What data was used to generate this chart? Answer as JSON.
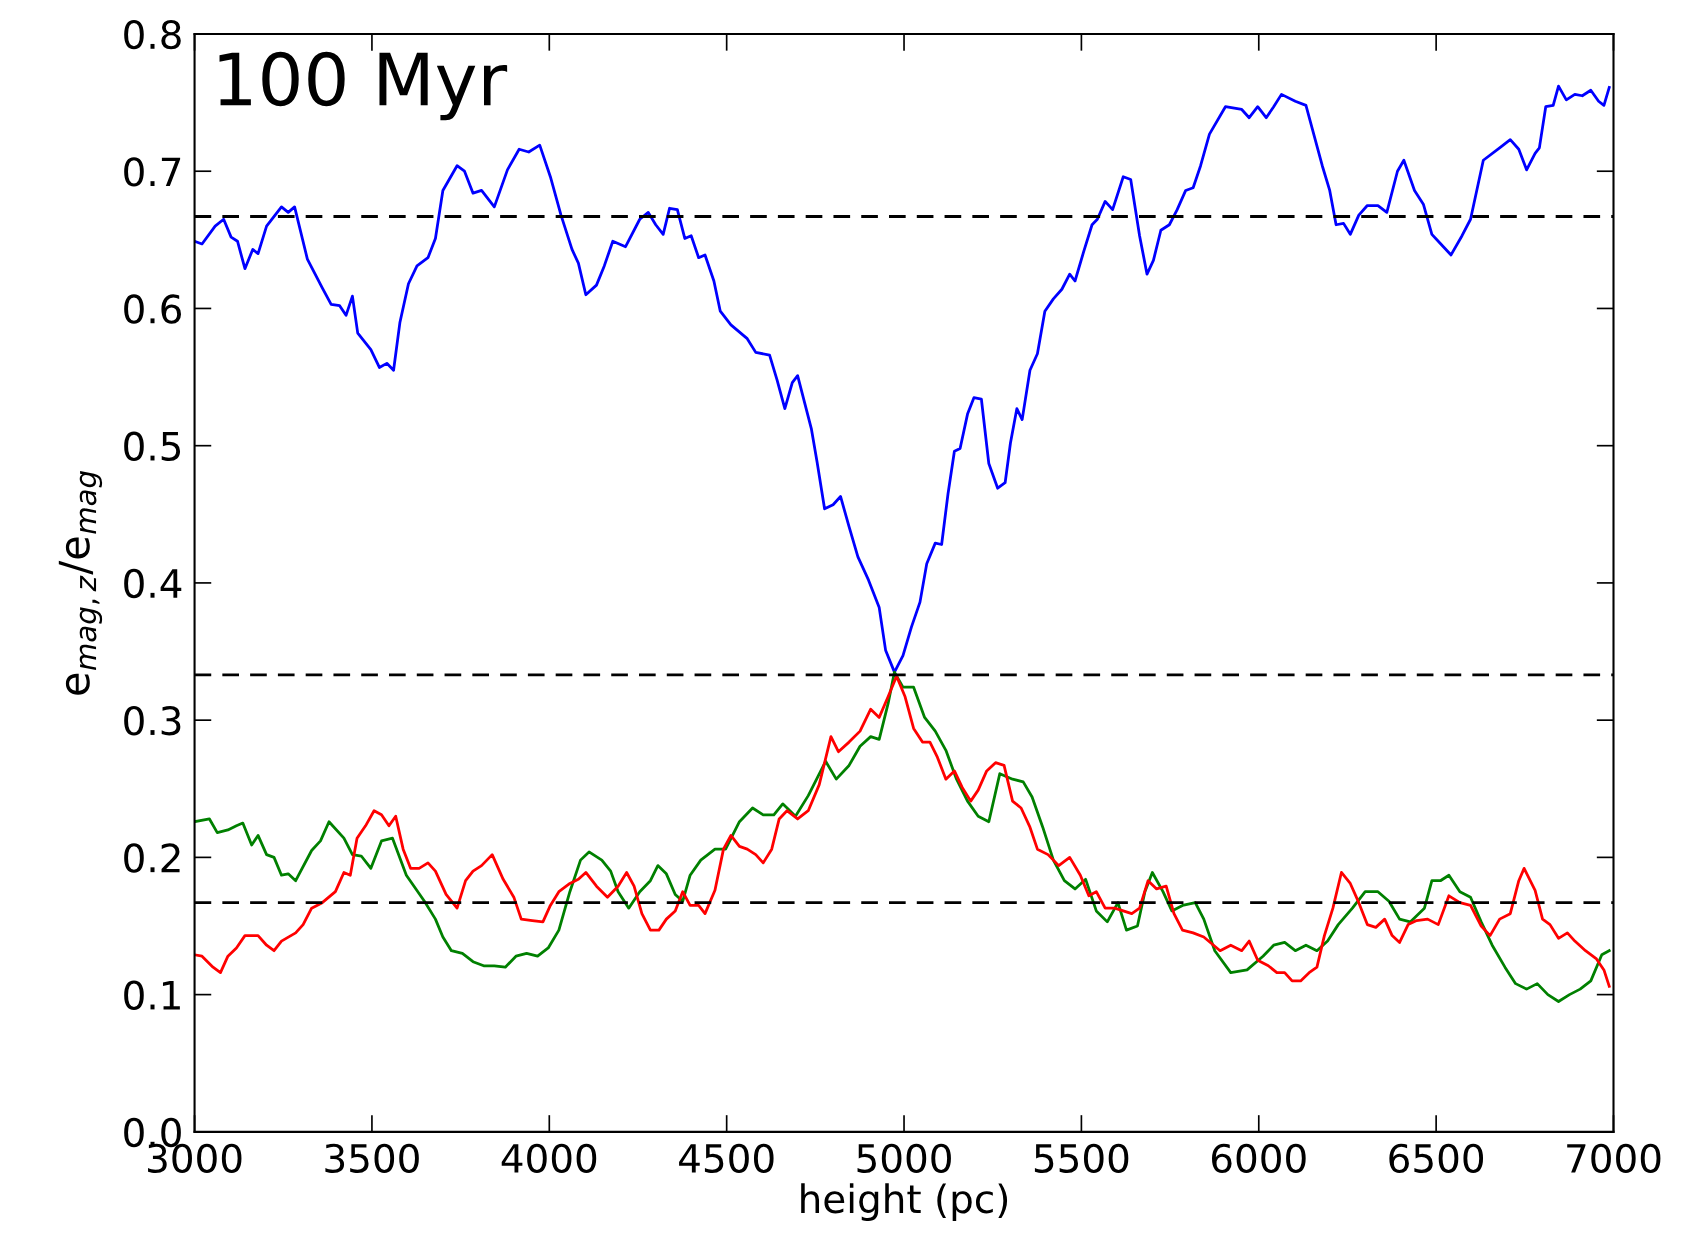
{
  "chart_data": {
    "type": "line",
    "xlabel": "height (pc)",
    "ylabel": "e$_{mag,z}$/e$_{mag}$",
    "annotations": [
      "100 Myr"
    ],
    "xlim": [
      3000,
      7000
    ],
    "xticks": [
      3000,
      3500,
      4000,
      4500,
      5000,
      5500,
      6000,
      6500,
      7000
    ],
    "ylim": [
      0.0,
      0.8
    ],
    "yticks": [
      {
        "value": 0,
        "label": "0.0"
      },
      0.1,
      0.2,
      0.3,
      0.4,
      0.5,
      0.6,
      0.7,
      0.8
    ],
    "line_style": "solid",
    "marker": "none",
    "ref_lines": [
      {
        "axis": "y",
        "value": 0.667,
        "color": "#000000",
        "line_style": "dashed"
      },
      {
        "axis": "y",
        "value": 0.333,
        "color": "#000000",
        "line_style": "dashed"
      },
      {
        "axis": "y",
        "value": 0.167,
        "color": "#000000",
        "line_style": "dashed"
      }
    ],
    "series": [
      {
        "color": "#0000ff",
        "x": [
          3000,
          3021,
          3058,
          3082,
          3103,
          3121,
          3142,
          3164,
          3179,
          3203,
          3245,
          3264,
          3282,
          3318,
          3360,
          3385,
          3409,
          3427,
          3445,
          3460,
          3497,
          3521,
          3542,
          3561,
          3579,
          3603,
          3627,
          3658,
          3679,
          3700,
          3740,
          3761,
          3785,
          3809,
          3845,
          3882,
          3915,
          3942,
          3973,
          4003,
          4033,
          4064,
          4082,
          4103,
          4133,
          4155,
          4179,
          4215,
          4255,
          4279,
          4300,
          4321,
          4339,
          4361,
          4382,
          4400,
          4421,
          4439,
          4464,
          4482,
          4512,
          4558,
          4582,
          4621,
          4642,
          4664,
          4685,
          4700,
          4739,
          4755,
          4776,
          4800,
          4821,
          4845,
          4870,
          4900,
          4930,
          4948,
          4973,
          4997,
          5021,
          5045,
          5064,
          5088,
          5106,
          5124,
          5142,
          5158,
          5179,
          5197,
          5218,
          5239,
          5264,
          5285,
          5300,
          5318,
          5333,
          5355,
          5376,
          5397,
          5421,
          5445,
          5467,
          5482,
          5506,
          5530,
          5545,
          5567,
          5588,
          5618,
          5639,
          5664,
          5685,
          5703,
          5724,
          5748,
          5770,
          5794,
          5815,
          5836,
          5861,
          5906,
          5952,
          5973,
          5997,
          6021,
          6042,
          6064,
          6103,
          6133,
          6179,
          6200,
          6218,
          6239,
          6258,
          6282,
          6306,
          6336,
          6361,
          6391,
          6409,
          6439,
          6464,
          6488,
          6506,
          6542,
          6573,
          6597,
          6633,
          6679,
          6709,
          6733,
          6755,
          6779,
          6791,
          6809,
          6830,
          6845,
          6867,
          6891,
          6912,
          6936,
          6958,
          6973,
          6988
        ],
        "values": [
          0.649,
          0.647,
          0.66,
          0.665,
          0.652,
          0.649,
          0.629,
          0.643,
          0.64,
          0.66,
          0.674,
          0.67,
          0.674,
          0.636,
          0.615,
          0.603,
          0.602,
          0.595,
          0.609,
          0.582,
          0.57,
          0.557,
          0.56,
          0.555,
          0.59,
          0.618,
          0.631,
          0.637,
          0.651,
          0.686,
          0.704,
          0.7,
          0.684,
          0.686,
          0.674,
          0.701,
          0.716,
          0.714,
          0.719,
          0.696,
          0.668,
          0.643,
          0.633,
          0.61,
          0.617,
          0.631,
          0.649,
          0.645,
          0.665,
          0.67,
          0.661,
          0.654,
          0.673,
          0.672,
          0.651,
          0.653,
          0.637,
          0.639,
          0.62,
          0.598,
          0.588,
          0.578,
          0.568,
          0.566,
          0.548,
          0.527,
          0.546,
          0.551,
          0.512,
          0.488,
          0.454,
          0.457,
          0.463,
          0.441,
          0.419,
          0.402,
          0.382,
          0.351,
          0.335,
          0.347,
          0.368,
          0.386,
          0.414,
          0.429,
          0.428,
          0.465,
          0.496,
          0.498,
          0.523,
          0.535,
          0.534,
          0.487,
          0.469,
          0.473,
          0.502,
          0.527,
          0.519,
          0.555,
          0.567,
          0.598,
          0.607,
          0.614,
          0.625,
          0.62,
          0.641,
          0.661,
          0.665,
          0.678,
          0.672,
          0.696,
          0.694,
          0.653,
          0.625,
          0.635,
          0.657,
          0.661,
          0.672,
          0.686,
          0.688,
          0.704,
          0.727,
          0.747,
          0.745,
          0.739,
          0.747,
          0.739,
          0.747,
          0.756,
          0.751,
          0.748,
          0.704,
          0.686,
          0.661,
          0.662,
          0.654,
          0.668,
          0.675,
          0.675,
          0.67,
          0.7,
          0.708,
          0.686,
          0.676,
          0.654,
          0.649,
          0.639,
          0.653,
          0.665,
          0.708,
          0.717,
          0.723,
          0.716,
          0.701,
          0.713,
          0.717,
          0.747,
          0.748,
          0.762,
          0.752,
          0.756,
          0.755,
          0.759,
          0.751,
          0.748,
          0.761
        ]
      },
      {
        "color": "#008000",
        "x": [
          3000,
          3042,
          3064,
          3094,
          3118,
          3136,
          3161,
          3179,
          3203,
          3224,
          3245,
          3264,
          3285,
          3330,
          3355,
          3379,
          3421,
          3445,
          3470,
          3497,
          3527,
          3558,
          3597,
          3648,
          3679,
          3700,
          3724,
          3755,
          3785,
          3815,
          3845,
          3876,
          3906,
          3936,
          3967,
          3997,
          4027,
          4058,
          4088,
          4112,
          4148,
          4173,
          4194,
          4224,
          4255,
          4285,
          4306,
          4330,
          4355,
          4376,
          4397,
          4427,
          4467,
          4497,
          4536,
          4573,
          4603,
          4633,
          4658,
          4694,
          4730,
          4779,
          4809,
          4845,
          4876,
          4906,
          4930,
          4955,
          4973,
          4997,
          5027,
          5058,
          5088,
          5118,
          5148,
          5179,
          5209,
          5239,
          5270,
          5306,
          5336,
          5361,
          5391,
          5421,
          5452,
          5482,
          5512,
          5542,
          5573,
          5603,
          5627,
          5658,
          5679,
          5700,
          5730,
          5755,
          5785,
          5821,
          5845,
          5876,
          5921,
          5967,
          6012,
          6042,
          6073,
          6103,
          6133,
          6164,
          6194,
          6224,
          6264,
          6300,
          6336,
          6367,
          6397,
          6427,
          6467,
          6488,
          6512,
          6536,
          6567,
          6597,
          6627,
          6658,
          6694,
          6724,
          6755,
          6785,
          6815,
          6845,
          6876,
          6906,
          6936,
          6967,
          6988
        ],
        "values": [
          0.226,
          0.228,
          0.218,
          0.22,
          0.223,
          0.225,
          0.209,
          0.216,
          0.202,
          0.2,
          0.187,
          0.188,
          0.183,
          0.205,
          0.212,
          0.226,
          0.214,
          0.202,
          0.201,
          0.192,
          0.212,
          0.214,
          0.187,
          0.168,
          0.155,
          0.142,
          0.132,
          0.13,
          0.124,
          0.121,
          0.121,
          0.12,
          0.128,
          0.13,
          0.128,
          0.134,
          0.147,
          0.175,
          0.198,
          0.204,
          0.198,
          0.19,
          0.175,
          0.163,
          0.175,
          0.183,
          0.194,
          0.188,
          0.173,
          0.168,
          0.187,
          0.198,
          0.206,
          0.206,
          0.226,
          0.236,
          0.231,
          0.231,
          0.239,
          0.23,
          0.245,
          0.27,
          0.257,
          0.267,
          0.281,
          0.288,
          0.286,
          0.312,
          0.335,
          0.324,
          0.324,
          0.302,
          0.292,
          0.278,
          0.257,
          0.241,
          0.23,
          0.226,
          0.261,
          0.257,
          0.255,
          0.244,
          0.222,
          0.198,
          0.183,
          0.177,
          0.184,
          0.161,
          0.153,
          0.167,
          0.147,
          0.15,
          0.175,
          0.189,
          0.175,
          0.161,
          0.165,
          0.167,
          0.155,
          0.132,
          0.116,
          0.118,
          0.128,
          0.136,
          0.138,
          0.132,
          0.136,
          0.132,
          0.139,
          0.151,
          0.163,
          0.175,
          0.175,
          0.168,
          0.155,
          0.153,
          0.163,
          0.183,
          0.183,
          0.187,
          0.175,
          0.171,
          0.153,
          0.136,
          0.12,
          0.108,
          0.104,
          0.108,
          0.1,
          0.095,
          0.1,
          0.104,
          0.11,
          0.129,
          0.132
        ]
      },
      {
        "color": "#ff0000",
        "x": [
          3000,
          3021,
          3052,
          3073,
          3094,
          3118,
          3142,
          3179,
          3203,
          3224,
          3245,
          3285,
          3306,
          3330,
          3360,
          3397,
          3421,
          3439,
          3458,
          3482,
          3506,
          3527,
          3548,
          3567,
          3588,
          3609,
          3633,
          3658,
          3679,
          3709,
          3740,
          3764,
          3785,
          3809,
          3839,
          3870,
          3900,
          3921,
          3952,
          3982,
          4003,
          4027,
          4058,
          4082,
          4103,
          4133,
          4164,
          4194,
          4218,
          4239,
          4261,
          4285,
          4309,
          4330,
          4355,
          4376,
          4397,
          4421,
          4439,
          4467,
          4491,
          4512,
          4536,
          4558,
          4582,
          4603,
          4627,
          4648,
          4670,
          4700,
          4730,
          4761,
          4794,
          4815,
          4845,
          4876,
          4906,
          4930,
          4955,
          4979,
          5003,
          5027,
          5052,
          5073,
          5094,
          5118,
          5142,
          5164,
          5188,
          5209,
          5233,
          5258,
          5282,
          5306,
          5330,
          5355,
          5376,
          5406,
          5436,
          5467,
          5497,
          5521,
          5542,
          5567,
          5594,
          5618,
          5642,
          5664,
          5688,
          5712,
          5739,
          5761,
          5785,
          5815,
          5845,
          5891,
          5921,
          5952,
          5973,
          5997,
          6027,
          6051,
          6073,
          6094,
          6118,
          6142,
          6164,
          6185,
          6209,
          6233,
          6258,
          6282,
          6306,
          6330,
          6355,
          6376,
          6397,
          6421,
          6445,
          6476,
          6506,
          6536,
          6567,
          6597,
          6627,
          6652,
          6679,
          6709,
          6733,
          6748,
          6779,
          6800,
          6821,
          6845,
          6870,
          6891,
          6921,
          6952,
          6973,
          6988
        ],
        "values": [
          0.129,
          0.128,
          0.12,
          0.116,
          0.128,
          0.134,
          0.143,
          0.143,
          0.136,
          0.132,
          0.139,
          0.145,
          0.151,
          0.163,
          0.167,
          0.175,
          0.189,
          0.187,
          0.214,
          0.223,
          0.234,
          0.231,
          0.223,
          0.23,
          0.206,
          0.192,
          0.192,
          0.196,
          0.19,
          0.173,
          0.163,
          0.183,
          0.19,
          0.194,
          0.202,
          0.184,
          0.171,
          0.155,
          0.154,
          0.153,
          0.165,
          0.175,
          0.181,
          0.184,
          0.189,
          0.179,
          0.171,
          0.179,
          0.189,
          0.179,
          0.159,
          0.147,
          0.147,
          0.155,
          0.161,
          0.175,
          0.165,
          0.165,
          0.159,
          0.176,
          0.206,
          0.216,
          0.208,
          0.206,
          0.202,
          0.196,
          0.206,
          0.228,
          0.234,
          0.228,
          0.234,
          0.253,
          0.288,
          0.277,
          0.284,
          0.292,
          0.308,
          0.302,
          0.317,
          0.332,
          0.317,
          0.294,
          0.284,
          0.284,
          0.273,
          0.257,
          0.263,
          0.251,
          0.241,
          0.249,
          0.263,
          0.269,
          0.267,
          0.241,
          0.236,
          0.222,
          0.206,
          0.202,
          0.194,
          0.2,
          0.187,
          0.172,
          0.175,
          0.163,
          0.163,
          0.161,
          0.159,
          0.163,
          0.183,
          0.177,
          0.179,
          0.159,
          0.147,
          0.145,
          0.142,
          0.132,
          0.136,
          0.132,
          0.139,
          0.125,
          0.121,
          0.116,
          0.116,
          0.11,
          0.11,
          0.116,
          0.12,
          0.143,
          0.163,
          0.189,
          0.181,
          0.167,
          0.151,
          0.149,
          0.155,
          0.143,
          0.138,
          0.151,
          0.154,
          0.155,
          0.151,
          0.172,
          0.167,
          0.165,
          0.15,
          0.143,
          0.155,
          0.159,
          0.183,
          0.192,
          0.176,
          0.155,
          0.151,
          0.141,
          0.145,
          0.139,
          0.132,
          0.126,
          0.118,
          0.106
        ]
      }
    ]
  }
}
